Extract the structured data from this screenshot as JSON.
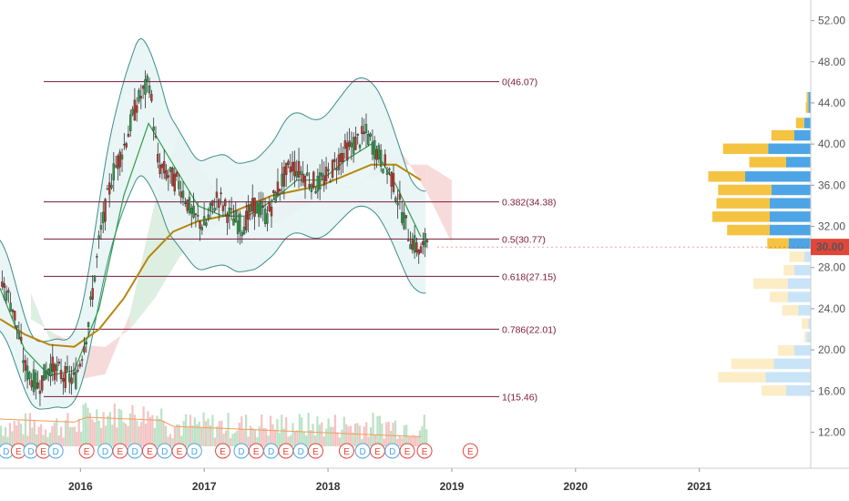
{
  "chart_data": {
    "type": "line",
    "title": "",
    "xlabel": "",
    "ylabel": "",
    "ylim": [
      8.5,
      54
    ],
    "x_range": [
      2015.35,
      2021.9
    ],
    "y_ticks": [
      "12.00",
      "16.00",
      "20.00",
      "24.00",
      "28.00",
      "32.00",
      "36.00",
      "40.00",
      "44.00",
      "48.00",
      "52.00"
    ],
    "x_ticks": [
      {
        "label": "2016",
        "value": 2016
      },
      {
        "label": "2017",
        "value": 2017
      },
      {
        "label": "2018",
        "value": 2018
      },
      {
        "label": "2019",
        "value": 2019
      },
      {
        "label": "2020",
        "value": 2020
      },
      {
        "label": "2021",
        "value": 2021
      }
    ],
    "current_price": {
      "label": "30.00",
      "value": 30.0,
      "color": "#e0463a"
    },
    "fib_levels": [
      {
        "label": "0(46.07)",
        "value": 46.07
      },
      {
        "label": "0.382(34.38)",
        "value": 34.38
      },
      {
        "label": "0.5(30.77)",
        "value": 30.77
      },
      {
        "label": "0.618(27.15)",
        "value": 27.15
      },
      {
        "label": "0.786(22.01)",
        "value": 22.01
      },
      {
        "label": "1(15.46)",
        "value": 15.46
      }
    ],
    "fib_color": "#7a1a3a",
    "price_series": {
      "name": "",
      "x": [
        2015.35,
        2015.45,
        2015.55,
        2015.65,
        2015.75,
        2015.85,
        2015.95,
        2016.05,
        2016.15,
        2016.25,
        2016.35,
        2016.45,
        2016.55,
        2016.62,
        2016.7,
        2016.8,
        2016.9,
        2017.0,
        2017.1,
        2017.2,
        2017.3,
        2017.4,
        2017.5,
        2017.6,
        2017.7,
        2017.8,
        2017.9,
        2018.0,
        2018.1,
        2018.2,
        2018.3,
        2018.4,
        2018.5,
        2018.6,
        2018.65,
        2018.7,
        2018.75,
        2018.8
      ],
      "values": [
        27,
        24,
        18,
        16.5,
        18.5,
        17.5,
        17,
        22,
        31,
        37,
        40,
        44,
        46,
        38,
        37,
        36,
        33,
        32,
        35,
        33,
        32,
        34,
        33,
        36,
        38,
        37,
        36,
        37,
        39,
        40,
        41,
        39,
        37,
        33,
        31,
        30,
        29.5,
        31
      ]
    },
    "ma_slow": {
      "x": [
        2015.35,
        2015.55,
        2015.75,
        2015.95,
        2016.15,
        2016.35,
        2016.55,
        2016.75,
        2016.95,
        2017.15,
        2017.35,
        2017.55,
        2017.75,
        2017.95,
        2018.15,
        2018.35,
        2018.55,
        2018.75
      ],
      "values": [
        23,
        21.5,
        20.5,
        20.3,
        22,
        25,
        29,
        31.5,
        32.5,
        33,
        34,
        35,
        35.5,
        36,
        37,
        38,
        38,
        36.5
      ],
      "color": "#b8860b"
    },
    "ma_fast": {
      "x": [
        2015.35,
        2015.55,
        2015.75,
        2015.95,
        2016.15,
        2016.35,
        2016.55,
        2016.75,
        2016.95,
        2017.15,
        2017.35,
        2017.55,
        2017.75,
        2017.95,
        2018.15,
        2018.35,
        2018.55,
        2018.75
      ],
      "values": [
        26,
        20,
        17.5,
        18,
        24,
        35,
        42,
        38,
        34,
        33,
        33,
        34.5,
        36.5,
        36.5,
        38.5,
        40,
        36,
        31
      ],
      "color": "#2e9e4a"
    },
    "volume_profile": [
      {
        "price": 44.5,
        "buy": 2,
        "sell": 3
      },
      {
        "price": 43.5,
        "buy": 3,
        "sell": 3
      },
      {
        "price": 42,
        "buy": 10,
        "sell": 8
      },
      {
        "price": 40.8,
        "buy": 28,
        "sell": 20
      },
      {
        "price": 39.5,
        "buy": 55,
        "sell": 52
      },
      {
        "price": 38.2,
        "buy": 45,
        "sell": 30
      },
      {
        "price": 36.8,
        "buy": 45,
        "sell": 80
      },
      {
        "price": 35.5,
        "buy": 65,
        "sell": 48
      },
      {
        "price": 34.2,
        "buy": 65,
        "sell": 50
      },
      {
        "price": 32.9,
        "buy": 70,
        "sell": 50
      },
      {
        "price": 31.6,
        "buy": 52,
        "sell": 50
      },
      {
        "price": 30.3,
        "buy": 26,
        "sell": 27
      },
      {
        "price": 29.0,
        "buy": 18,
        "sell": 8
      },
      {
        "price": 27.7,
        "buy": 13,
        "sell": 20
      },
      {
        "price": 26.4,
        "buy": 42,
        "sell": 28
      },
      {
        "price": 25.1,
        "buy": 22,
        "sell": 28
      },
      {
        "price": 23.8,
        "buy": 20,
        "sell": 15
      },
      {
        "price": 22.5,
        "buy": 8,
        "sell": 3
      },
      {
        "price": 21.2,
        "buy": 3,
        "sell": 5
      },
      {
        "price": 19.9,
        "buy": 20,
        "sell": 20
      },
      {
        "price": 18.6,
        "buy": 52,
        "sell": 45
      },
      {
        "price": 17.3,
        "buy": 58,
        "sell": 55
      },
      {
        "price": 16.0,
        "buy": 30,
        "sell": 30
      }
    ],
    "events": [
      {
        "label": "D",
        "x": 2015.4,
        "kind": "dividend"
      },
      {
        "label": "E",
        "x": 2015.5,
        "kind": "earnings"
      },
      {
        "label": "D",
        "x": 2015.6,
        "kind": "dividend"
      },
      {
        "label": "E",
        "x": 2015.7,
        "kind": "earnings"
      },
      {
        "label": "D",
        "x": 2015.8,
        "kind": "dividend"
      },
      {
        "label": "E",
        "x": 2016.05,
        "kind": "earnings"
      },
      {
        "label": "D",
        "x": 2016.2,
        "kind": "dividend"
      },
      {
        "label": "E",
        "x": 2016.32,
        "kind": "earnings"
      },
      {
        "label": "D",
        "x": 2016.44,
        "kind": "dividend"
      },
      {
        "label": "E",
        "x": 2016.56,
        "kind": "earnings"
      },
      {
        "label": "D",
        "x": 2016.68,
        "kind": "dividend"
      },
      {
        "label": "E",
        "x": 2016.8,
        "kind": "earnings"
      },
      {
        "label": "D",
        "x": 2016.92,
        "kind": "dividend"
      },
      {
        "label": "E",
        "x": 2017.15,
        "kind": "earnings"
      },
      {
        "label": "D",
        "x": 2017.3,
        "kind": "dividend"
      },
      {
        "label": "E",
        "x": 2017.42,
        "kind": "earnings"
      },
      {
        "label": "D",
        "x": 2017.54,
        "kind": "dividend"
      },
      {
        "label": "E",
        "x": 2017.66,
        "kind": "earnings"
      },
      {
        "label": "D",
        "x": 2017.78,
        "kind": "dividend"
      },
      {
        "label": "E",
        "x": 2017.9,
        "kind": "earnings"
      },
      {
        "label": "E",
        "x": 2018.15,
        "kind": "earnings"
      },
      {
        "label": "D",
        "x": 2018.28,
        "kind": "dividend"
      },
      {
        "label": "E",
        "x": 2018.4,
        "kind": "earnings"
      },
      {
        "label": "D",
        "x": 2018.52,
        "kind": "dividend"
      },
      {
        "label": "E",
        "x": 2018.64,
        "kind": "earnings"
      },
      {
        "label": "E",
        "x": 2018.78,
        "kind": "earnings"
      },
      {
        "label": "E",
        "x": 2019.15,
        "kind": "earnings"
      }
    ],
    "colors": {
      "axis": "#cccccc",
      "text": "#555555",
      "up": "#2e9e4a",
      "down": "#c0392b",
      "cloud_up": "#d7ecdc",
      "cloud_down": "#f6d5d5",
      "band": "#e8f4f5",
      "vp_buy": "#f5c342",
      "vp_sell": "#4ea5e6",
      "dividend": "#4ea5e6",
      "earnings": "#e0463a"
    }
  }
}
